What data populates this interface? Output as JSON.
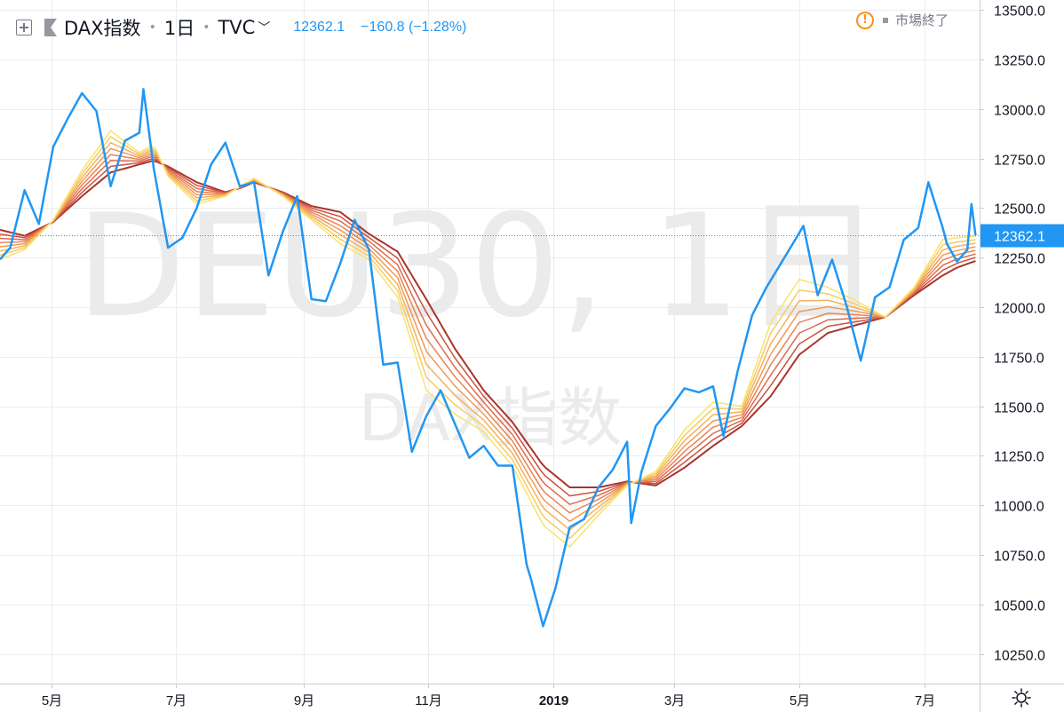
{
  "legend": {
    "symbol_name": "DAX指数",
    "interval": "1日",
    "exchange": "TVC",
    "last_price": "12362.1",
    "change": "−160.8 (−1.28%)"
  },
  "market_status": "市場終了",
  "watermark": {
    "line1": "DEU30, 1日",
    "line2": "DAX指数"
  },
  "chart_data": {
    "type": "line",
    "title": "DAX指数",
    "x_ticks": [
      "5月",
      "7月",
      "9月",
      "11月",
      "2019",
      "3月",
      "5月",
      "7月"
    ],
    "y_ticks": [
      "10250.0",
      "10500.0",
      "10750.0",
      "11000.0",
      "11250.0",
      "11500.0",
      "11750.0",
      "12000.0",
      "12250.0",
      "12500.0",
      "12750.0",
      "13000.0",
      "13250.0",
      "13500.0"
    ],
    "ylim": [
      10100,
      13550
    ],
    "x_range": [
      "2018-04-06",
      "2019-07-28"
    ],
    "last_value": 12362.1,
    "last_value_label": "12362.1",
    "price_series": {
      "color": "#2196f3",
      "points": [
        [
          "2018-04-06",
          12241
        ],
        [
          "2018-04-11",
          12300
        ],
        [
          "2018-04-18",
          12590
        ],
        [
          "2018-04-25",
          12420
        ],
        [
          "2018-05-02",
          12810
        ],
        [
          "2018-05-09",
          12950
        ],
        [
          "2018-05-16",
          13080
        ],
        [
          "2018-05-23",
          12990
        ],
        [
          "2018-05-30",
          12610
        ],
        [
          "2018-06-06",
          12840
        ],
        [
          "2018-06-13",
          12880
        ],
        [
          "2018-06-15",
          13100
        ],
        [
          "2018-06-20",
          12700
        ],
        [
          "2018-06-27",
          12300
        ],
        [
          "2018-07-04",
          12350
        ],
        [
          "2018-07-11",
          12500
        ],
        [
          "2018-07-18",
          12720
        ],
        [
          "2018-07-25",
          12830
        ],
        [
          "2018-08-01",
          12610
        ],
        [
          "2018-08-08",
          12630
        ],
        [
          "2018-08-15",
          12160
        ],
        [
          "2018-08-22",
          12380
        ],
        [
          "2018-08-29",
          12560
        ],
        [
          "2018-09-05",
          12040
        ],
        [
          "2018-09-12",
          12030
        ],
        [
          "2018-09-19",
          12220
        ],
        [
          "2018-09-26",
          12440
        ],
        [
          "2018-10-03",
          12290
        ],
        [
          "2018-10-10",
          11710
        ],
        [
          "2018-10-17",
          11720
        ],
        [
          "2018-10-24",
          11270
        ],
        [
          "2018-10-31",
          11450
        ],
        [
          "2018-11-07",
          11580
        ],
        [
          "2018-11-14",
          11410
        ],
        [
          "2018-11-21",
          11240
        ],
        [
          "2018-11-28",
          11300
        ],
        [
          "2018-12-05",
          11200
        ],
        [
          "2018-12-12",
          11200
        ],
        [
          "2018-12-19",
          10700
        ],
        [
          "2018-12-21",
          10630
        ],
        [
          "2018-12-27",
          10390
        ],
        [
          "2019-01-02",
          10580
        ],
        [
          "2019-01-09",
          10890
        ],
        [
          "2019-01-16",
          10930
        ],
        [
          "2019-01-23",
          11090
        ],
        [
          "2019-01-30",
          11180
        ],
        [
          "2019-02-06",
          11320
        ],
        [
          "2019-02-08",
          10910
        ],
        [
          "2019-02-13",
          11170
        ],
        [
          "2019-02-20",
          11400
        ],
        [
          "2019-02-27",
          11490
        ],
        [
          "2019-03-06",
          11590
        ],
        [
          "2019-03-13",
          11570
        ],
        [
          "2019-03-20",
          11600
        ],
        [
          "2019-03-25",
          11350
        ],
        [
          "2019-04-01",
          11680
        ],
        [
          "2019-04-08",
          11960
        ],
        [
          "2019-04-15",
          12100
        ],
        [
          "2019-04-22",
          12220
        ],
        [
          "2019-04-29",
          12340
        ],
        [
          "2019-05-03",
          12410
        ],
        [
          "2019-05-10",
          12060
        ],
        [
          "2019-05-17",
          12240
        ],
        [
          "2019-05-24",
          12010
        ],
        [
          "2019-05-31",
          11730
        ],
        [
          "2019-06-07",
          12050
        ],
        [
          "2019-06-14",
          12100
        ],
        [
          "2019-06-21",
          12340
        ],
        [
          "2019-06-28",
          12400
        ],
        [
          "2019-07-03",
          12630
        ],
        [
          "2019-07-10",
          12400
        ],
        [
          "2019-07-12",
          12320
        ],
        [
          "2019-07-17",
          12230
        ],
        [
          "2019-07-22",
          12290
        ],
        [
          "2019-07-24",
          12520
        ],
        [
          "2019-07-26",
          12362.1
        ]
      ]
    },
    "ma_ribbon": {
      "note": "Rainbow moving-average ribbon of 8 averages (fast = yellow to slow = dark red)",
      "colors": [
        "#f8e36e",
        "#f6cc62",
        "#f3b15c",
        "#ef9a57",
        "#e88453",
        "#de6b4d",
        "#cc5140",
        "#a8352a"
      ],
      "fast": [
        [
          "2018-04-06",
          12240
        ],
        [
          "2018-04-18",
          12290
        ],
        [
          "2018-05-02",
          12440
        ],
        [
          "2018-05-16",
          12690
        ],
        [
          "2018-05-30",
          12890
        ],
        [
          "2018-06-13",
          12780
        ],
        [
          "2018-06-20",
          12820
        ],
        [
          "2018-06-27",
          12660
        ],
        [
          "2018-07-11",
          12520
        ],
        [
          "2018-07-25",
          12560
        ],
        [
          "2018-08-01",
          12610
        ],
        [
          "2018-08-08",
          12650
        ],
        [
          "2018-08-22",
          12560
        ],
        [
          "2018-09-05",
          12440
        ],
        [
          "2018-09-19",
          12320
        ],
        [
          "2018-10-03",
          12240
        ],
        [
          "2018-10-17",
          12050
        ],
        [
          "2018-10-31",
          11580
        ],
        [
          "2018-11-14",
          11460
        ],
        [
          "2018-11-28",
          11370
        ],
        [
          "2018-12-12",
          11200
        ],
        [
          "2018-12-27",
          10900
        ],
        [
          "2019-01-09",
          10790
        ],
        [
          "2019-01-23",
          10950
        ],
        [
          "2019-02-06",
          11100
        ],
        [
          "2019-02-20",
          11170
        ],
        [
          "2019-03-06",
          11380
        ],
        [
          "2019-03-20",
          11520
        ],
        [
          "2019-04-03",
          11500
        ],
        [
          "2019-04-17",
          11920
        ],
        [
          "2019-05-01",
          12140
        ],
        [
          "2019-05-15",
          12100
        ],
        [
          "2019-05-29",
          12030
        ],
        [
          "2019-06-12",
          11950
        ],
        [
          "2019-06-26",
          12100
        ],
        [
          "2019-07-10",
          12340
        ],
        [
          "2019-07-17",
          12350
        ],
        [
          "2019-07-28",
          12360
        ]
      ],
      "slow": [
        [
          "2018-04-06",
          12390
        ],
        [
          "2018-04-18",
          12360
        ],
        [
          "2018-05-02",
          12430
        ],
        [
          "2018-05-16",
          12560
        ],
        [
          "2018-05-30",
          12680
        ],
        [
          "2018-06-13",
          12720
        ],
        [
          "2018-06-20",
          12740
        ],
        [
          "2018-06-27",
          12710
        ],
        [
          "2018-07-11",
          12630
        ],
        [
          "2018-07-25",
          12580
        ],
        [
          "2018-08-01",
          12600
        ],
        [
          "2018-08-08",
          12630
        ],
        [
          "2018-08-22",
          12580
        ],
        [
          "2018-09-05",
          12510
        ],
        [
          "2018-09-19",
          12480
        ],
        [
          "2018-10-03",
          12370
        ],
        [
          "2018-10-17",
          12280
        ],
        [
          "2018-10-31",
          12040
        ],
        [
          "2018-11-14",
          11790
        ],
        [
          "2018-11-28",
          11580
        ],
        [
          "2018-12-12",
          11420
        ],
        [
          "2018-12-27",
          11200
        ],
        [
          "2019-01-09",
          11090
        ],
        [
          "2019-01-23",
          11090
        ],
        [
          "2019-02-06",
          11120
        ],
        [
          "2019-02-20",
          11100
        ],
        [
          "2019-03-06",
          11190
        ],
        [
          "2019-03-20",
          11300
        ],
        [
          "2019-04-03",
          11400
        ],
        [
          "2019-04-17",
          11550
        ],
        [
          "2019-05-01",
          11760
        ],
        [
          "2019-05-15",
          11870
        ],
        [
          "2019-05-29",
          11910
        ],
        [
          "2019-06-12",
          11950
        ],
        [
          "2019-06-26",
          12060
        ],
        [
          "2019-07-10",
          12160
        ],
        [
          "2019-07-17",
          12200
        ],
        [
          "2019-07-28",
          12240
        ]
      ]
    },
    "grid": true,
    "legend_position": "top-left"
  },
  "colors": {
    "price": "#2196f3",
    "grid": "#e9ecf1",
    "axis_text": "#131722",
    "watermark": "#ebebeb",
    "warning": "#f7931a"
  },
  "icons": {
    "add": "plus-square-icon",
    "flag": "flag-icon",
    "dropdown": "chevron-down-icon",
    "status": "warning-circle-icon",
    "settings": "gear-icon"
  }
}
